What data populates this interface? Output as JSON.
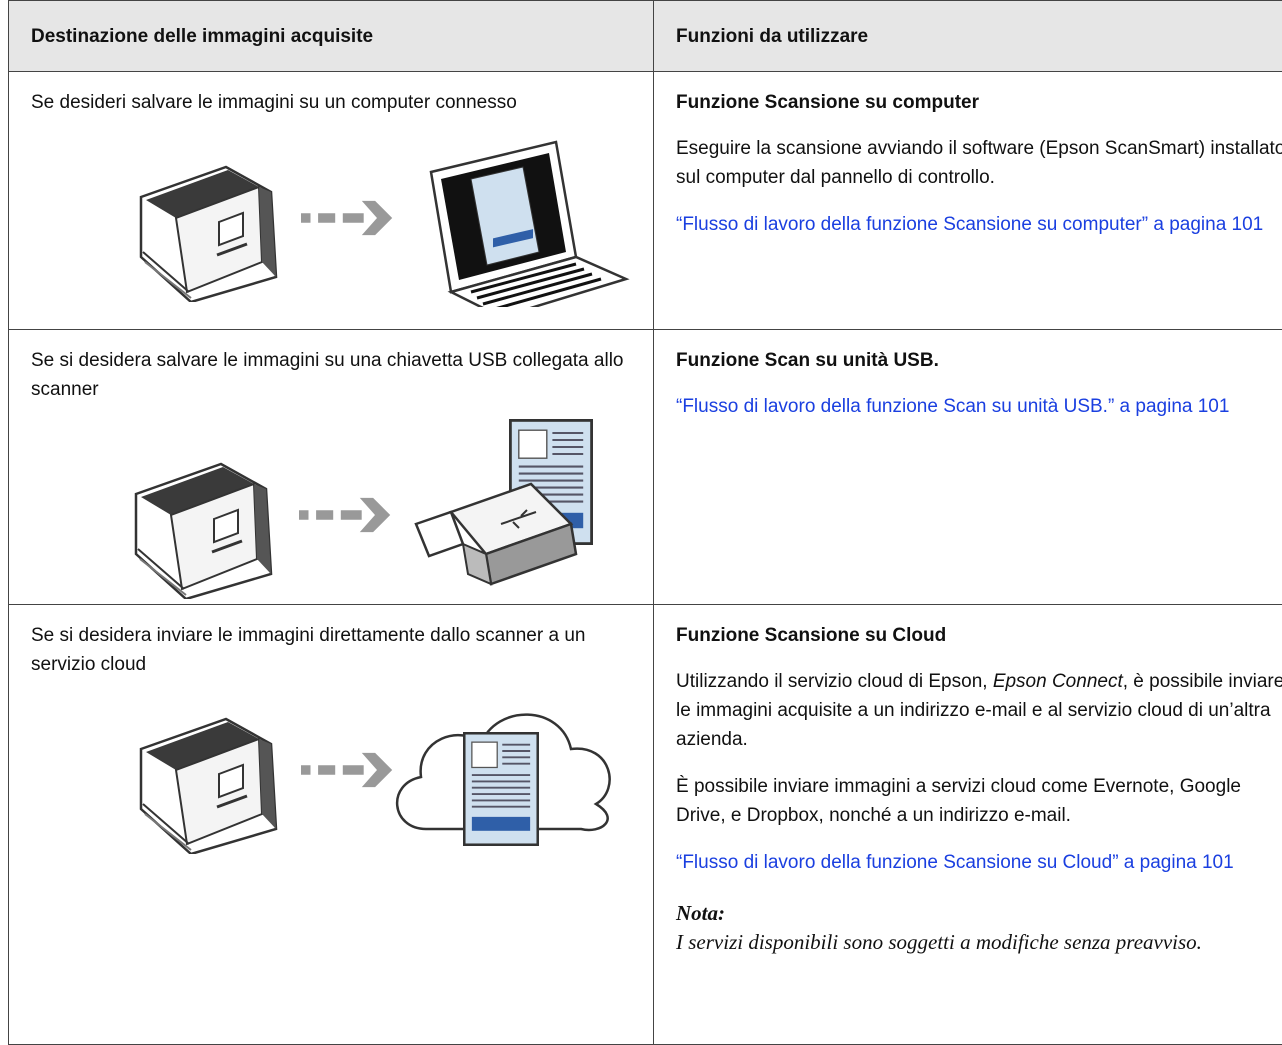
{
  "header": {
    "columns": [
      "Destinazione delle immagini acquisite",
      "Funzioni da utilizzare"
    ]
  },
  "rows": [
    {
      "destination": "Se desideri salvare le immagini su un computer connesso",
      "function_title": "Funzione Scansione su computer",
      "paragraphs": [
        {
          "parts": [
            "Eseguire la scansione avviando il software (Epson ScanSmart) installato sul computer dal pannello di controllo."
          ]
        }
      ],
      "link": "“Flusso di lavoro della funzione Scansione su computer” a pagina 101"
    },
    {
      "destination": "Se si desidera salvare le immagini su una chiavetta USB collegata allo scanner",
      "function_title": "Funzione Scan su unità USB.",
      "paragraphs": [],
      "link": "“Flusso di lavoro della funzione Scan su unità USB.” a pagina 101"
    },
    {
      "destination": "Se si desidera inviare le immagini direttamente dallo scanner a un servizio cloud",
      "function_title": "Funzione Scansione su Cloud",
      "paragraphs": [
        {
          "parts": [
            "Utilizzando il servizio cloud di Epson, ",
            "Epson Connect",
            ", è possibile inviare le immagini acquisite a un indirizzo e-mail e al servizio cloud di un’altra azienda."
          ]
        },
        {
          "parts": [
            "È possibile inviare immagini a servizi cloud come Evernote, Google Drive, e Dropbox, nonché a un indirizzo e-mail."
          ]
        }
      ],
      "link": "“Flusso di lavoro della funzione Scansione su Cloud” a pagina 101",
      "note": {
        "title": "Nota:",
        "text": "I servizi disponibili sono soggetti a modifiche senza preavviso."
      }
    }
  ]
}
